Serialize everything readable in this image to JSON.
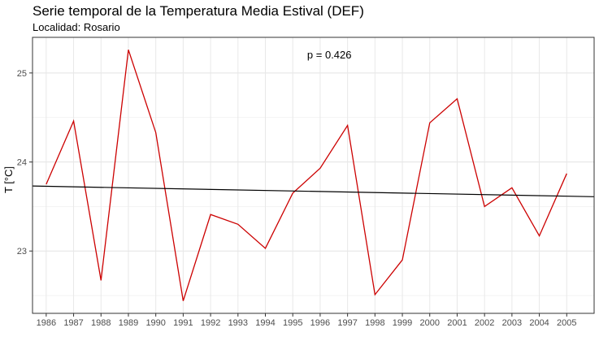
{
  "header": {
    "title": "Serie temporal de la Temperatura Media Estival (DEF)",
    "subtitle": "Localidad: Rosario"
  },
  "chart_data": {
    "type": "line",
    "title": "Serie temporal de la Temperatura Media Estival (DEF)",
    "subtitle": "Localidad: Rosario",
    "xlabel": "",
    "ylabel": "T [°C]",
    "x": [
      1986,
      1987,
      1988,
      1989,
      1990,
      1991,
      1992,
      1993,
      1994,
      1995,
      1996,
      1997,
      1998,
      1999,
      2000,
      2001,
      2002,
      2003,
      2004,
      2005
    ],
    "xlim": [
      1985.5,
      2006.0
    ],
    "ylim": [
      22.3,
      25.4
    ],
    "yticks": [
      23,
      24,
      25
    ],
    "series": [
      {
        "values": [
          23.75,
          24.46,
          22.67,
          25.26,
          24.33,
          22.44,
          23.41,
          23.3,
          23.03,
          23.65,
          23.93,
          24.41,
          22.51,
          22.9,
          24.44,
          24.71,
          23.5,
          23.71,
          23.17,
          23.87
        ],
        "color": "#cc0000"
      }
    ],
    "trend_line": {
      "x": [
        1985.5,
        2006.0
      ],
      "y": [
        23.73,
        23.61
      ],
      "color": "#000000"
    },
    "annotation": {
      "text": "p = 0.426",
      "x": 1996.0,
      "y": 25.2
    },
    "grid": true,
    "legend": "none"
  }
}
